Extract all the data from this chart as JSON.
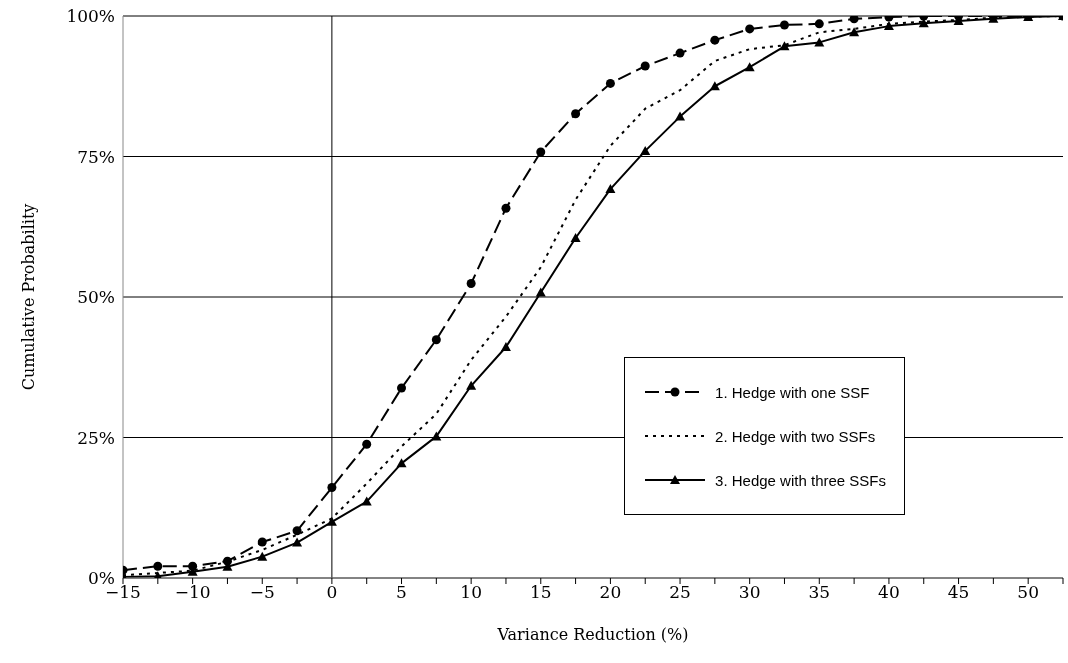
{
  "chart_data": {
    "type": "line",
    "xlabel": "Variance Reduction (%)",
    "ylabel": "Cumulative Probability",
    "x": [
      -15,
      -12.5,
      -10,
      -7.5,
      -5,
      -2.5,
      0,
      2.5,
      5,
      7.5,
      10,
      12.5,
      15,
      17.5,
      20,
      22.5,
      25,
      27.5,
      30,
      32.5,
      35,
      37.5,
      40,
      42.5,
      45,
      47.5,
      50,
      52.5
    ],
    "series": [
      {
        "name": "1. Hedge with one SSF",
        "color": "#000000",
        "line_style": "dashed",
        "marker": "circle",
        "values": [
          1.4,
          2.1,
          2.1,
          3,
          6.4,
          8.4,
          16.1,
          23.8,
          33.8,
          42.4,
          52.4,
          65.8,
          75.8,
          82.6,
          88,
          91.1,
          93.4,
          95.7,
          97.7,
          98.4,
          98.6,
          99.5,
          99.8,
          100,
          100,
          100,
          100,
          100
        ]
      },
      {
        "name": "2. Hedge with two SSFs",
        "color": "#000000",
        "line_style": "dotted",
        "marker": "none",
        "values": [
          0.5,
          0.9,
          1.3,
          2.9,
          5,
          7.7,
          10.6,
          16.8,
          23.4,
          29.2,
          38.8,
          46.5,
          55.3,
          67.3,
          76.9,
          83.5,
          86.8,
          92,
          94.1,
          94.8,
          97.1,
          97.7,
          98.6,
          99,
          99.3,
          99.7,
          99.9,
          100
        ]
      },
      {
        "name": "3. Hedge with three SSFs",
        "color": "#000000",
        "line_style": "solid",
        "marker": "triangle",
        "values": [
          0.2,
          0.3,
          1.1,
          2,
          3.8,
          6.3,
          10,
          13.6,
          20.4,
          25.2,
          34.2,
          41.1,
          50.8,
          60.5,
          69.2,
          76,
          82.1,
          87.5,
          90.9,
          94.6,
          95.3,
          97.1,
          98.2,
          98.7,
          99.1,
          99.5,
          99.8,
          100
        ]
      }
    ],
    "xlim": [
      -15,
      52.5
    ],
    "xticks": [
      {
        "value": -15,
        "label": "−15"
      },
      {
        "value": -12.5,
        "label": null
      },
      {
        "value": -10,
        "label": "−10"
      },
      {
        "value": -7.5,
        "label": null
      },
      {
        "value": -5,
        "label": "−5"
      },
      {
        "value": -2.5,
        "label": null
      },
      {
        "value": 0,
        "label": "0"
      },
      {
        "value": 2.5,
        "label": null
      },
      {
        "value": 5,
        "label": "5"
      },
      {
        "value": 7.5,
        "label": null
      },
      {
        "value": 10,
        "label": "10"
      },
      {
        "value": 12.5,
        "label": null
      },
      {
        "value": 15,
        "label": "15"
      },
      {
        "value": 17.5,
        "label": null
      },
      {
        "value": 20,
        "label": "20"
      },
      {
        "value": 22.5,
        "label": null
      },
      {
        "value": 25,
        "label": "25"
      },
      {
        "value": 27.5,
        "label": null
      },
      {
        "value": 30,
        "label": "30"
      },
      {
        "value": 32.5,
        "label": null
      },
      {
        "value": 35,
        "label": "35"
      },
      {
        "value": 37.5,
        "label": null
      },
      {
        "value": 40,
        "label": "40"
      },
      {
        "value": 42.5,
        "label": null
      },
      {
        "value": 45,
        "label": "45"
      },
      {
        "value": 47.5,
        "label": null
      },
      {
        "value": 50,
        "label": "50"
      },
      {
        "value": 52.5,
        "label": null
      }
    ],
    "ylim": [
      0,
      100
    ],
    "yticks": [
      {
        "value": 0,
        "label": "0%"
      },
      {
        "value": 25,
        "label": "25%"
      },
      {
        "value": 50,
        "label": "50%"
      },
      {
        "value": 75,
        "label": "75%"
      },
      {
        "value": 100,
        "label": "100%"
      }
    ],
    "grid": "y",
    "ref_lines": [
      {
        "axis": "x",
        "value": 0
      }
    ],
    "legend": "bottom right"
  }
}
